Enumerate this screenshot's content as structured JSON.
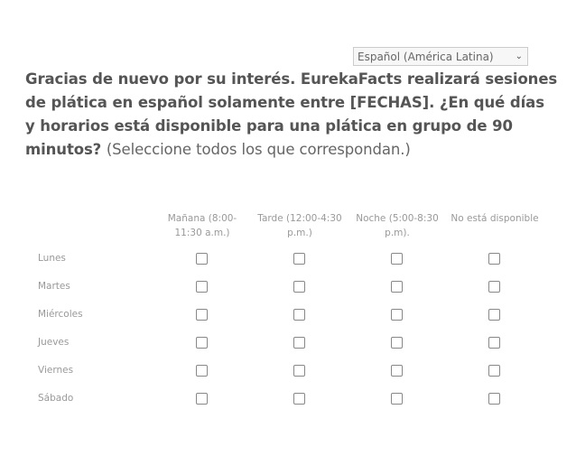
{
  "language_select": {
    "value": "Español (América Latina)",
    "icon": "chevron-down-icon"
  },
  "question": {
    "text": "Gracias de nuevo por su interés. EurekaFacts realizará sesiones de plática en español solamente entre [FECHAS]. ¿En qué días y horarios está disponible para una plática en grupo de 90 minutos?",
    "hint": "(Seleccione todos los que correspondan.)"
  },
  "columns": [
    "Mañana (8:00-11:30 a.m.)",
    "Tarde (12:00-4:30 p.m.)",
    "Noche (5:00-8:30 p.m).",
    "No está disponible"
  ],
  "rows": [
    "Lunes",
    "Martes",
    "Miércoles",
    "Jueves",
    "Viernes",
    "Sábado"
  ]
}
